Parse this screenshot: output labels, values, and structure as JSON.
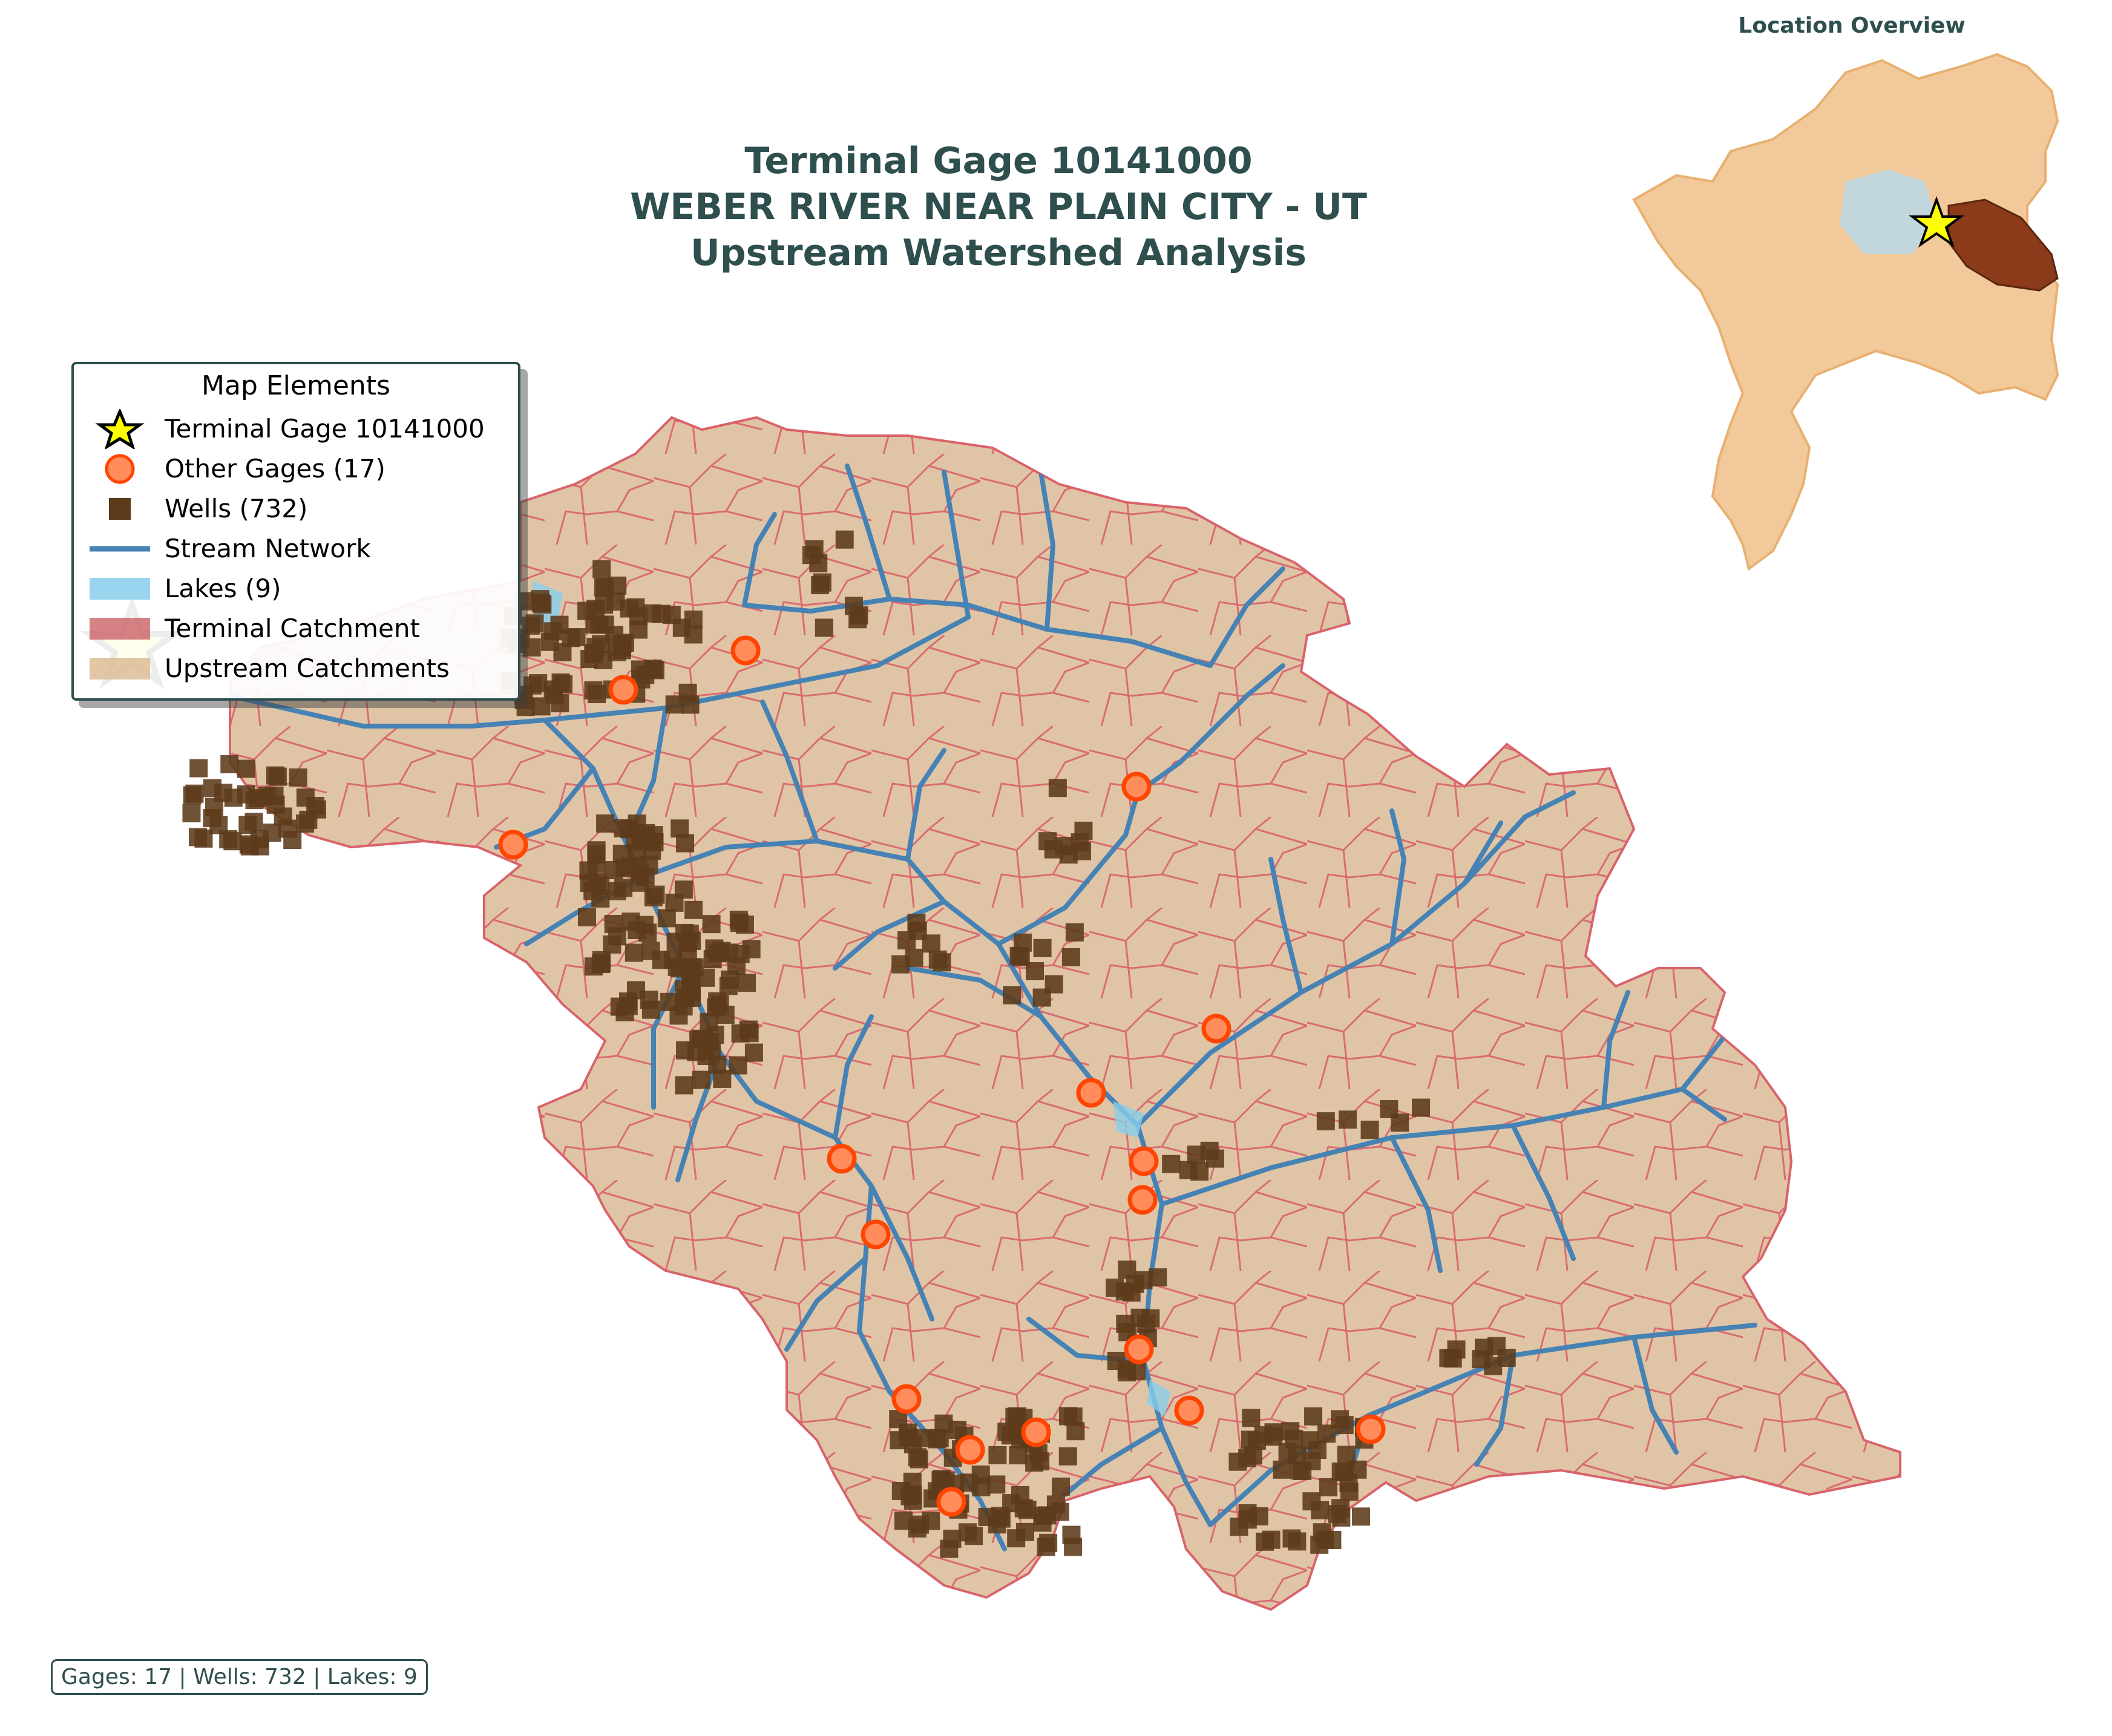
{
  "title": {
    "line1": "Terminal Gage 10141000",
    "line2": "WEBER RIVER NEAR PLAIN CITY - UT",
    "line3": "Upstream Watershed Analysis"
  },
  "inset": {
    "title": "Location Overview"
  },
  "legend": {
    "title": "Map Elements",
    "items": [
      {
        "label": "Terminal Gage 10141000",
        "icon": "star-icon"
      },
      {
        "label": "Other Gages (17)",
        "icon": "circle-icon"
      },
      {
        "label": "Wells (732)",
        "icon": "square-icon"
      },
      {
        "label": "Stream Network",
        "icon": "line-icon"
      },
      {
        "label": "Lakes (9)",
        "icon": "patch-icon"
      },
      {
        "label": "Terminal Catchment",
        "icon": "patch-icon"
      },
      {
        "label": "Upstream Catchments",
        "icon": "patch-icon"
      }
    ]
  },
  "stats": "Gages: 17 | Wells: 732 | Lakes: 9",
  "colors": {
    "catchment_fill": "#dfc5a6",
    "catchment_edge": "#d9636b",
    "stream": "#4682b4",
    "lake": "#87ceeb",
    "well": "#5c3a1a",
    "gage_fill": "#ff8c5a",
    "gage_edge": "#ff4500",
    "terminal_star": "#ffff00",
    "title": "#2f4f4f",
    "inset_stream": "#4169e1",
    "inset_terminal": "#8b3a1a"
  }
}
